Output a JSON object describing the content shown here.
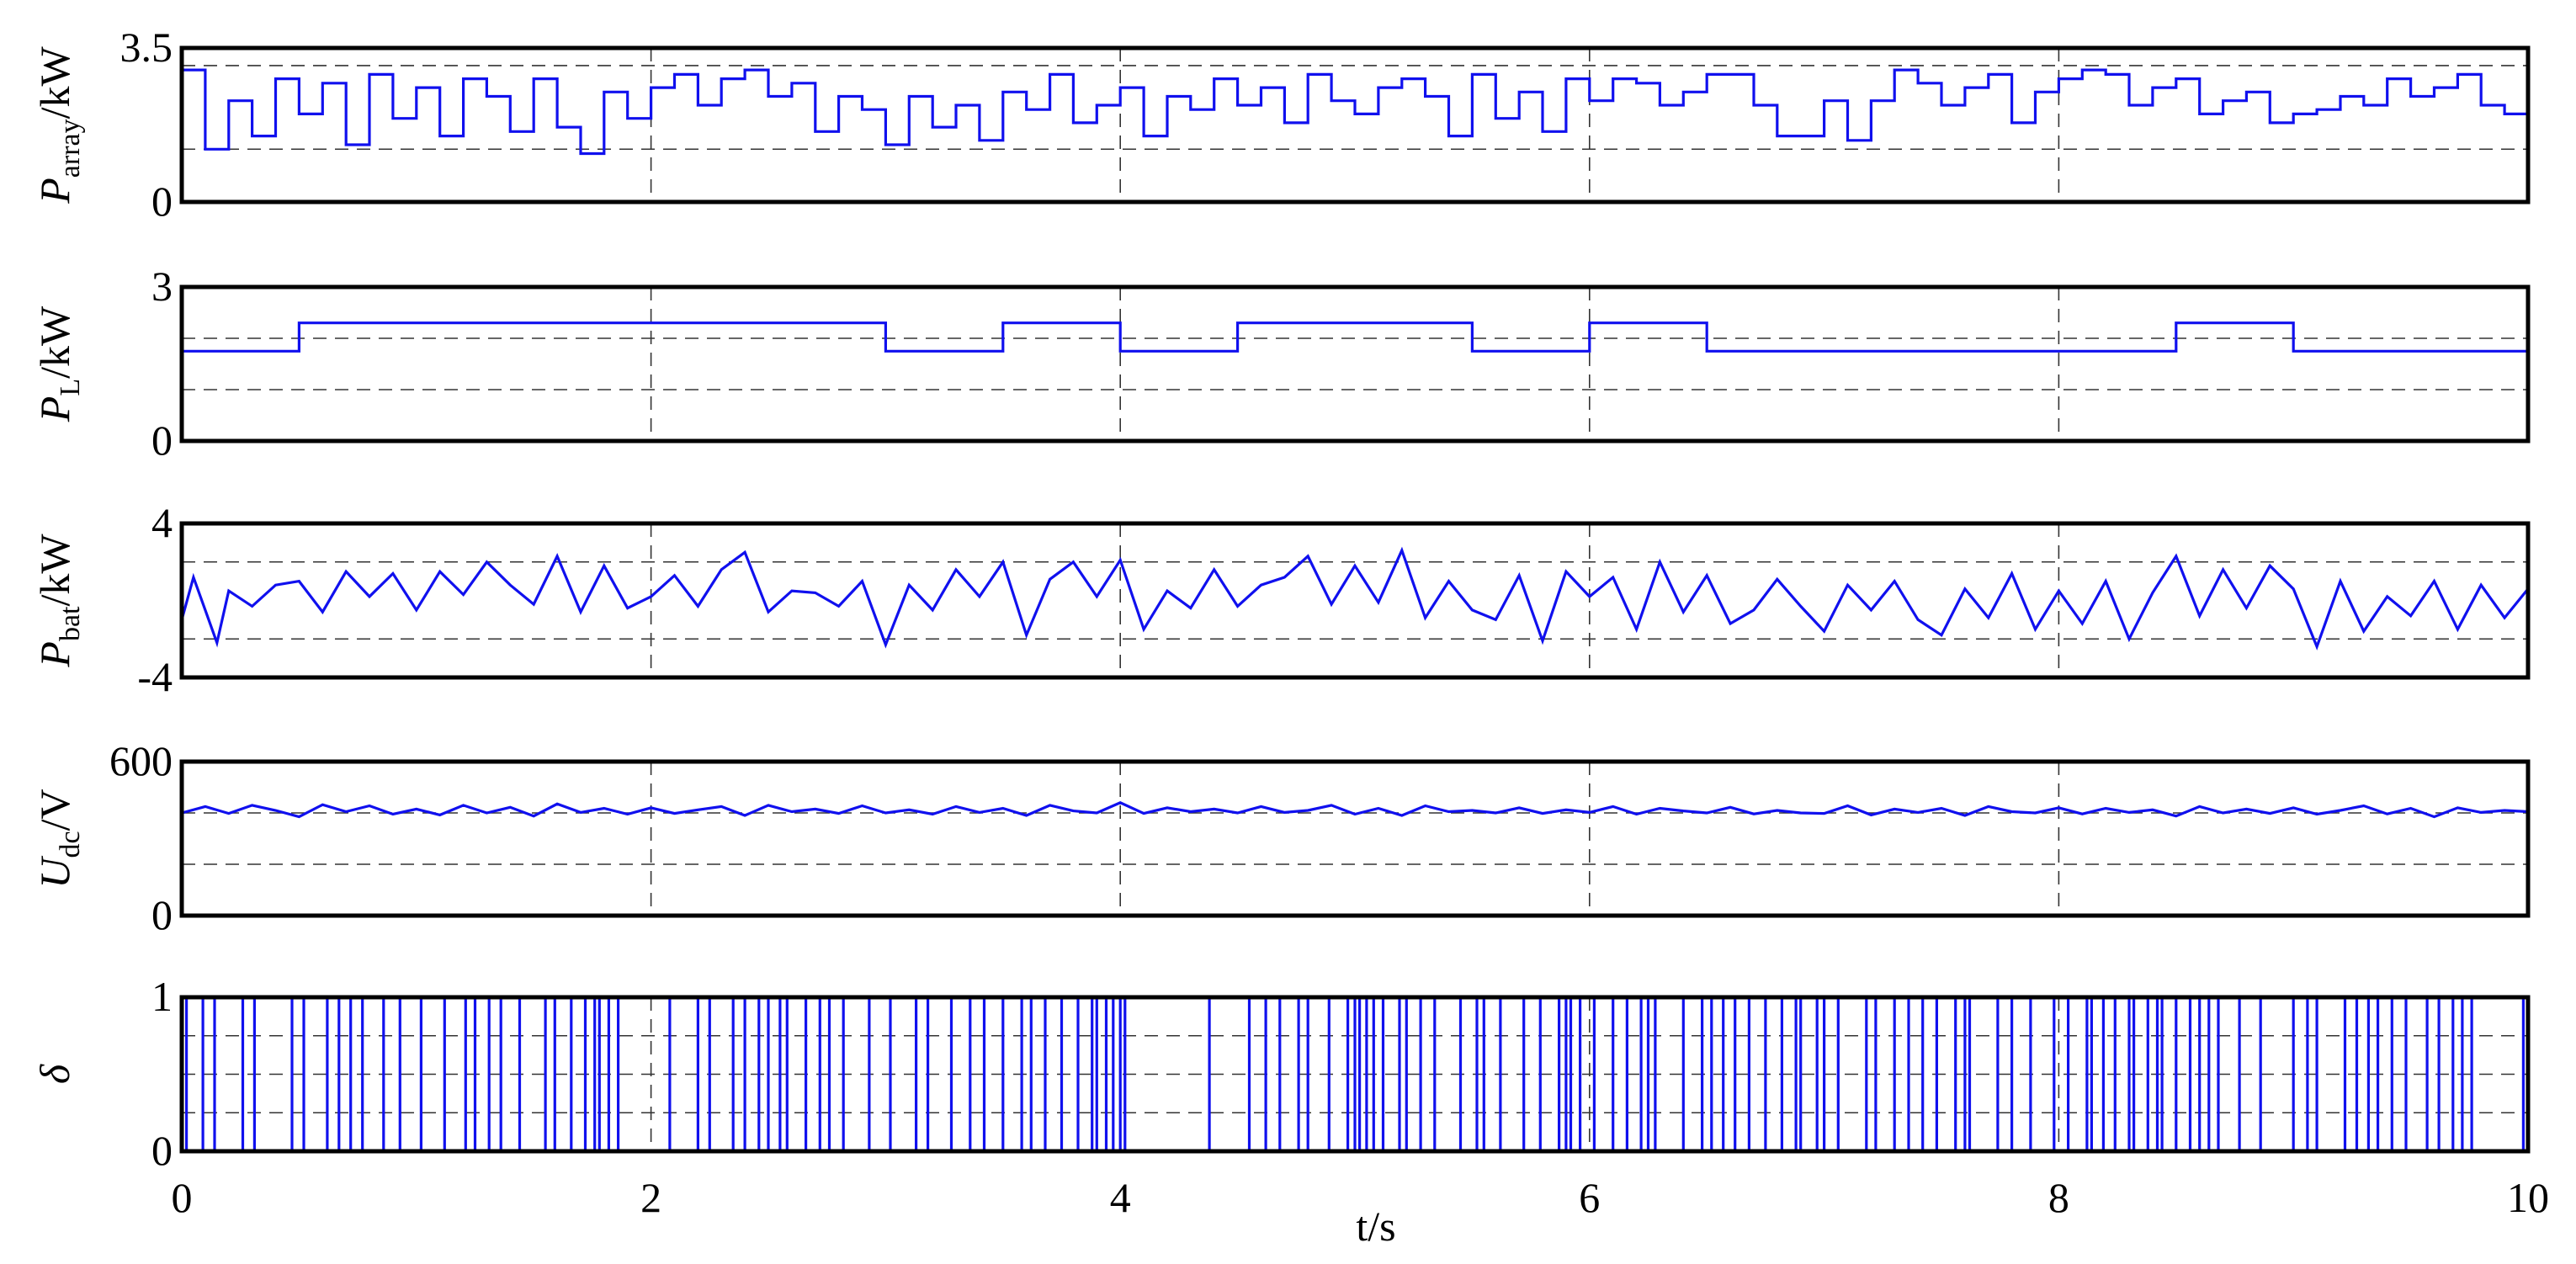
{
  "chart_data": [
    {
      "type": "line",
      "id": "p_array",
      "ylabel": {
        "main": "P",
        "sub": "array",
        "unit": "/kW"
      },
      "ylim": [
        0,
        3.5
      ],
      "yticks": [
        "0",
        "3.5"
      ],
      "ygrid": [
        1.2,
        3.1
      ],
      "xlim": [
        0,
        10
      ],
      "series": [
        {
          "color": "#1010ee",
          "step": true,
          "x": [
            0,
            0.1,
            0.2,
            0.3,
            0.4,
            0.5,
            0.6,
            0.7,
            0.8,
            0.9,
            1.0,
            1.1,
            1.2,
            1.3,
            1.4,
            1.5,
            1.6,
            1.7,
            1.8,
            1.9,
            2.0,
            2.1,
            2.2,
            2.3,
            2.4,
            2.5,
            2.6,
            2.7,
            2.8,
            2.9,
            3.0,
            3.1,
            3.2,
            3.3,
            3.4,
            3.5,
            3.6,
            3.7,
            3.8,
            3.9,
            4.0,
            4.1,
            4.2,
            4.3,
            4.4,
            4.5,
            4.6,
            4.7,
            4.8,
            4.9,
            5.0,
            5.1,
            5.2,
            5.3,
            5.4,
            5.5,
            5.6,
            5.7,
            5.8,
            5.9,
            6.0,
            6.1,
            6.2,
            6.3,
            6.4,
            6.5,
            6.6,
            6.7,
            6.8,
            6.9,
            7.0,
            7.1,
            7.2,
            7.3,
            7.4,
            7.5,
            7.6,
            7.7,
            7.8,
            7.9,
            8.0,
            8.1,
            8.2,
            8.3,
            8.4,
            8.5,
            8.6,
            8.7,
            8.8,
            8.9,
            9.0,
            9.1,
            9.2,
            9.3,
            9.4,
            9.5,
            9.6,
            9.7,
            9.8,
            9.9,
            10.0
          ],
          "y": [
            3.0,
            1.2,
            2.3,
            1.5,
            2.8,
            2.0,
            2.7,
            1.3,
            2.9,
            1.9,
            2.6,
            1.5,
            2.8,
            2.4,
            1.6,
            2.8,
            1.7,
            1.1,
            2.5,
            1.9,
            2.6,
            2.9,
            2.2,
            2.8,
            3.0,
            2.4,
            2.7,
            1.6,
            2.4,
            2.1,
            1.3,
            2.4,
            1.7,
            2.2,
            1.4,
            2.5,
            2.1,
            2.9,
            1.8,
            2.2,
            2.6,
            1.5,
            2.4,
            2.1,
            2.8,
            2.2,
            2.6,
            1.8,
            2.9,
            2.3,
            2.0,
            2.6,
            2.8,
            2.4,
            1.5,
            2.9,
            1.9,
            2.5,
            1.6,
            2.8,
            2.3,
            2.8,
            2.7,
            2.2,
            2.5,
            2.9,
            2.9,
            2.2,
            1.5,
            1.5,
            2.3,
            1.4,
            2.3,
            3.0,
            2.7,
            2.2,
            2.6,
            2.9,
            1.8,
            2.5,
            2.8,
            3.0,
            2.9,
            2.2,
            2.6,
            2.8,
            2.0,
            2.3,
            2.5,
            1.8,
            2.0,
            2.1,
            2.4,
            2.2,
            2.8,
            2.4,
            2.6,
            2.9,
            2.2,
            2.0,
            1.3
          ]
        }
      ]
    },
    {
      "type": "line",
      "id": "p_load",
      "ylabel": {
        "main": "P",
        "sub": "L",
        "unit": "/kW"
      },
      "ylim": [
        0,
        3
      ],
      "yticks": [
        "0",
        "3"
      ],
      "ygrid": [
        1.0,
        2.0
      ],
      "xlim": [
        0,
        10
      ],
      "series": [
        {
          "color": "#1010ee",
          "step": true,
          "x": [
            0,
            0.5,
            3.0,
            3.5,
            4.0,
            4.5,
            5.5,
            6.0,
            6.5,
            8.5,
            9.0,
            10.0
          ],
          "y": [
            1.75,
            2.3,
            1.75,
            2.3,
            1.75,
            2.3,
            1.75,
            2.3,
            1.75,
            2.3,
            1.75,
            1.75
          ]
        }
      ]
    },
    {
      "type": "line",
      "id": "p_bat",
      "ylabel": {
        "main": "P",
        "sub": "bat",
        "unit": "/kW"
      },
      "ylim": [
        -4,
        4
      ],
      "yticks": [
        "-4",
        "4"
      ],
      "ygrid": [
        -2.0,
        2.0
      ],
      "xlim": [
        0,
        10
      ],
      "series": [
        {
          "color": "#1010ee",
          "x": [
            0,
            0.05,
            0.1,
            0.15,
            0.2,
            0.3,
            0.4,
            0.5,
            0.6,
            0.7,
            0.8,
            0.9,
            1.0,
            1.1,
            1.2,
            1.3,
            1.4,
            1.5,
            1.6,
            1.7,
            1.8,
            1.9,
            2.0,
            2.1,
            2.2,
            2.3,
            2.4,
            2.5,
            2.6,
            2.7,
            2.8,
            2.9,
            3.0,
            3.1,
            3.2,
            3.3,
            3.4,
            3.5,
            3.6,
            3.7,
            3.8,
            3.9,
            4.0,
            4.1,
            4.2,
            4.3,
            4.4,
            4.5,
            4.6,
            4.7,
            4.8,
            4.9,
            5.0,
            5.1,
            5.2,
            5.3,
            5.4,
            5.5,
            5.6,
            5.7,
            5.8,
            5.9,
            6.0,
            6.1,
            6.2,
            6.3,
            6.4,
            6.5,
            6.6,
            6.7,
            6.8,
            6.9,
            7.0,
            7.1,
            7.2,
            7.3,
            7.4,
            7.5,
            7.6,
            7.7,
            7.8,
            7.9,
            8.0,
            8.1,
            8.2,
            8.3,
            8.4,
            8.5,
            8.6,
            8.7,
            8.8,
            8.9,
            9.0,
            9.1,
            9.2,
            9.3,
            9.4,
            9.5,
            9.6,
            9.7,
            9.8,
            9.9,
            10.0
          ],
          "y": [
            -1.0,
            1.2,
            -0.5,
            -2.2,
            0.5,
            -0.3,
            0.8,
            1.0,
            -0.6,
            1.5,
            0.2,
            1.4,
            -0.5,
            1.5,
            0.3,
            2.0,
            0.8,
            -0.2,
            2.3,
            -0.6,
            1.8,
            -0.4,
            0.2,
            1.3,
            -0.3,
            1.6,
            2.5,
            -0.6,
            0.5,
            0.4,
            -0.3,
            1.0,
            -2.3,
            0.8,
            -0.5,
            1.6,
            0.2,
            2.0,
            -1.8,
            1.1,
            2.0,
            0.2,
            2.1,
            -1.5,
            0.5,
            -0.4,
            1.6,
            -0.3,
            0.8,
            1.2,
            2.3,
            -0.2,
            1.8,
            -0.1,
            2.6,
            -0.9,
            1.0,
            -0.5,
            -1.0,
            1.3,
            -2.1,
            1.5,
            0.2,
            1.2,
            -1.5,
            2.0,
            -0.6,
            1.3,
            -1.2,
            -0.5,
            1.1,
            -0.3,
            -1.6,
            0.8,
            -0.5,
            1.0,
            -1.0,
            -1.8,
            0.6,
            -0.9,
            1.4,
            -1.5,
            0.5,
            -1.2,
            1.0,
            -2.0,
            0.4,
            2.3,
            -0.8,
            1.6,
            -0.4,
            1.8,
            0.6,
            -2.4,
            1.0,
            -1.6,
            0.2,
            -0.8,
            1.0,
            -1.5,
            0.8,
            -0.9,
            0.6
          ]
        }
      ]
    },
    {
      "type": "line",
      "id": "u_dc",
      "ylabel": {
        "main": "U",
        "sub": "dc",
        "unit": "/V"
      },
      "ylim": [
        0,
        600
      ],
      "yticks": [
        "0",
        "600"
      ],
      "ygrid": [
        200,
        400
      ],
      "xlim": [
        0,
        10
      ],
      "series": [
        {
          "color": "#1010ee",
          "x": [
            0,
            0.1,
            0.2,
            0.3,
            0.4,
            0.5,
            0.6,
            0.7,
            0.8,
            0.9,
            1.0,
            1.1,
            1.2,
            1.3,
            1.4,
            1.5,
            1.6,
            1.7,
            1.8,
            1.9,
            2.0,
            2.1,
            2.2,
            2.3,
            2.4,
            2.5,
            2.6,
            2.7,
            2.8,
            2.9,
            3.0,
            3.1,
            3.2,
            3.3,
            3.4,
            3.5,
            3.6,
            3.7,
            3.8,
            3.9,
            4.0,
            4.1,
            4.2,
            4.3,
            4.4,
            4.5,
            4.6,
            4.7,
            4.8,
            4.9,
            5.0,
            5.1,
            5.2,
            5.3,
            5.4,
            5.5,
            5.6,
            5.7,
            5.8,
            5.9,
            6.0,
            6.1,
            6.2,
            6.3,
            6.4,
            6.5,
            6.6,
            6.7,
            6.8,
            6.9,
            7.0,
            7.1,
            7.2,
            7.3,
            7.4,
            7.5,
            7.6,
            7.7,
            7.8,
            7.9,
            8.0,
            8.1,
            8.2,
            8.3,
            8.4,
            8.5,
            8.6,
            8.7,
            8.8,
            8.9,
            9.0,
            9.1,
            9.2,
            9.3,
            9.4,
            9.5,
            9.6,
            9.7,
            9.8,
            9.9,
            10.0
          ],
          "y": [
            400,
            425,
            398,
            430,
            410,
            385,
            432,
            405,
            428,
            395,
            415,
            392,
            430,
            400,
            422,
            388,
            435,
            402,
            418,
            395,
            420,
            398,
            412,
            425,
            390,
            430,
            405,
            415,
            398,
            428,
            400,
            412,
            395,
            425,
            402,
            418,
            390,
            430,
            408,
            400,
            440,
            398,
            420,
            405,
            415,
            400,
            425,
            402,
            410,
            430,
            395,
            418,
            390,
            428,
            405,
            410,
            400,
            420,
            398,
            412,
            402,
            425,
            395,
            418,
            408,
            400,
            422,
            396,
            410,
            400,
            398,
            428,
            392,
            415,
            402,
            418,
            390,
            425,
            405,
            400,
            420,
            396,
            418,
            402,
            412,
            388,
            425,
            400,
            415,
            398,
            420,
            395,
            410,
            428,
            396,
            418,
            385,
            420,
            402,
            410,
            405
          ]
        }
      ]
    },
    {
      "type": "line",
      "id": "delta",
      "ylabel": {
        "main": "δ",
        "sub": "",
        "unit": ""
      },
      "ylim": [
        0,
        1
      ],
      "yticks": [
        "0",
        "1"
      ],
      "ygrid": [
        0.25,
        0.5,
        0.75
      ],
      "xlim": [
        0,
        10
      ],
      "series": [
        {
          "color": "#1010ee",
          "step": true,
          "transitions": [
            0.02,
            0.09,
            0.14,
            0.26,
            0.31,
            0.47,
            0.52,
            0.62,
            0.67,
            0.72,
            0.77,
            0.86,
            0.93,
            1.02,
            1.12,
            1.21,
            1.25,
            1.31,
            1.36,
            1.44,
            1.55,
            1.59,
            1.66,
            1.72,
            1.76,
            1.78,
            1.82,
            1.86,
            2.08,
            2.2,
            2.25,
            2.35,
            2.4,
            2.46,
            2.5,
            2.55,
            2.58,
            2.66,
            2.72,
            2.76,
            2.82,
            2.93,
            3.02,
            3.13,
            3.18,
            3.28,
            3.36,
            3.42,
            3.5,
            3.58,
            3.62,
            3.68,
            3.75,
            3.82,
            3.88,
            3.9,
            3.94,
            3.97,
            4.0,
            4.02,
            4.38,
            4.55,
            4.62,
            4.68,
            4.76,
            4.8,
            4.89,
            4.97,
            5.0,
            5.02,
            5.05,
            5.08,
            5.12,
            5.19,
            5.22,
            5.28,
            5.34,
            5.45,
            5.52,
            5.55,
            5.62,
            5.72,
            5.79,
            5.87,
            5.9,
            5.92,
            5.96,
            6.02,
            6.1,
            6.16,
            6.22,
            6.25,
            6.28,
            6.4,
            6.48,
            6.52,
            6.57,
            6.62,
            6.68,
            6.75,
            6.82,
            6.88,
            6.9,
            6.97,
            7.0,
            7.06,
            7.18,
            7.22,
            7.3,
            7.36,
            7.42,
            7.48,
            7.56,
            7.6,
            7.62,
            7.74,
            7.8,
            7.88,
            7.98,
            8.04,
            8.12,
            8.14,
            8.19,
            8.24,
            8.3,
            8.32,
            8.38,
            8.42,
            8.44,
            8.5,
            8.56,
            8.6,
            8.64,
            8.68,
            8.77,
            8.86,
            9.0,
            9.06,
            9.1,
            9.22,
            9.27,
            9.32,
            9.36,
            9.42,
            9.48,
            9.57,
            9.62,
            9.68,
            9.72,
            9.76,
            9.98,
            10.0
          ]
        }
      ]
    }
  ],
  "x_axis": {
    "label": "t/s",
    "ticks": [
      "0",
      "2",
      "4",
      "6",
      "8",
      "10"
    ],
    "tick_values": [
      0,
      2,
      4,
      6,
      8,
      10
    ]
  }
}
